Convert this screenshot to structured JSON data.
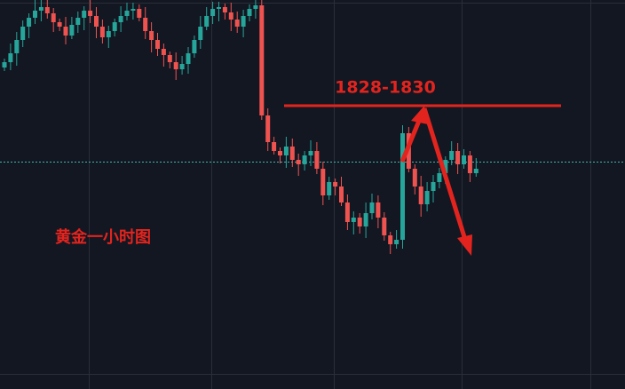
{
  "annotations": {
    "level": "1828-1830",
    "chart_label": "黄金一小时图"
  }
}
